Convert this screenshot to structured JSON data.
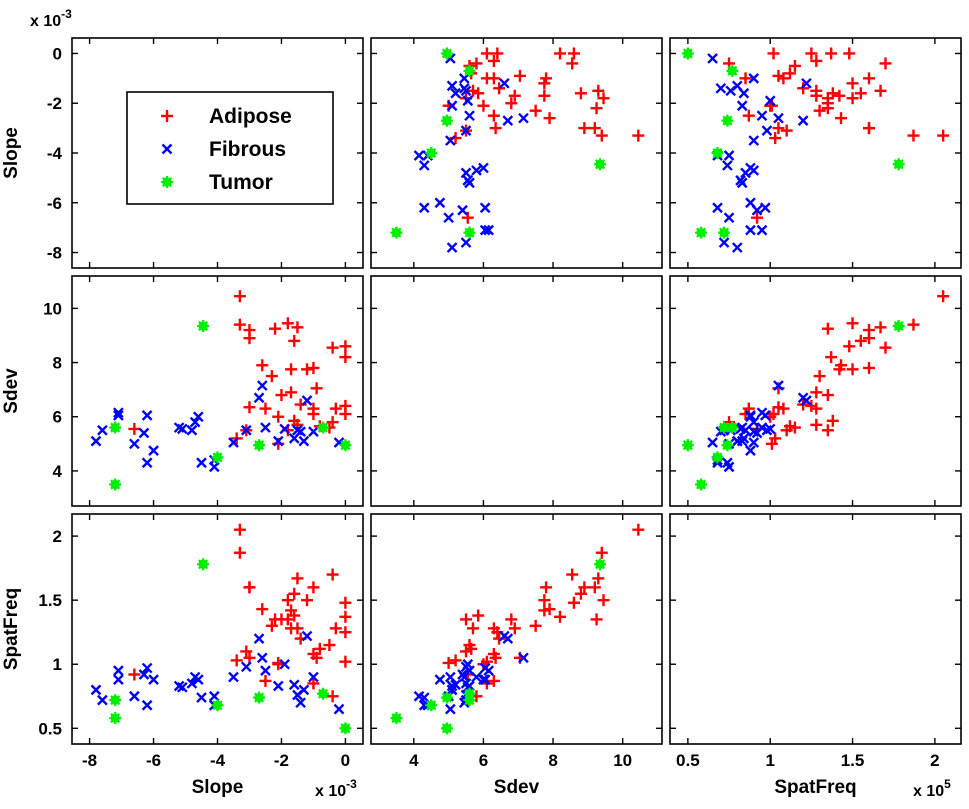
{
  "chart_data": {
    "type": "scatter",
    "variables": [
      "Slope",
      "Sdev",
      "SpatFreq"
    ],
    "legend": {
      "placement": "inside top-left panel",
      "entries": [
        {
          "name": "Adipose",
          "color": "#ff0000",
          "marker": "plus"
        },
        {
          "name": "Fibrous",
          "color": "#0000ff",
          "marker": "x"
        },
        {
          "name": "Tumor",
          "color": "#00ee00",
          "marker": "star"
        }
      ]
    },
    "axes": {
      "Slope": {
        "label": "Slope",
        "range": [
          -8.3,
          0.3
        ],
        "ticks": [
          -8,
          -6,
          -4,
          -2,
          0
        ],
        "exponent_label": "x 10",
        "exponent": "-3"
      },
      "Sdev": {
        "label": "Sdev",
        "range": [
          3.0,
          10.9
        ],
        "ticks": [
          4,
          6,
          8,
          10
        ],
        "exponent_label": "",
        "exponent": ""
      },
      "SpatFreq": {
        "label": "SpatFreq",
        "range": [
          0.44,
          2.11
        ],
        "ticks": [
          0.5,
          1,
          1.5,
          2
        ],
        "tick_labels": [
          "0.5",
          "1",
          "1.5",
          "2"
        ],
        "exponent_label": "x 10",
        "exponent": "5"
      }
    },
    "row_tick_labels": {
      "Slope": [
        "0",
        "-2",
        "-4",
        "-6",
        "-8"
      ],
      "Sdev": [
        "10",
        "8",
        "6",
        "4"
      ],
      "SpatFreq": [
        "2",
        "1.5",
        "1",
        "0.5"
      ]
    },
    "units_note": "Slope in units of 10^-3; SpatFreq in units of 10^5",
    "series": [
      {
        "name": "Adipose",
        "points": [
          [
            -3.3,
            10.45,
            2.05
          ],
          [
            -3.3,
            9.4,
            1.87
          ],
          [
            -3.0,
            9.2,
            1.6
          ],
          [
            -2.2,
            9.25,
            1.35
          ],
          [
            -1.8,
            9.45,
            1.5
          ],
          [
            -1.5,
            9.3,
            1.67
          ],
          [
            -1.6,
            8.8,
            1.55
          ],
          [
            -2.6,
            7.9,
            1.43
          ],
          [
            -2.3,
            7.5,
            1.3
          ],
          [
            -1.7,
            7.75,
            1.42
          ],
          [
            -1.2,
            7.75,
            1.5
          ],
          [
            -1.0,
            7.8,
            1.6
          ],
          [
            -0.4,
            8.55,
            1.7
          ],
          [
            0.0,
            8.6,
            1.48
          ],
          [
            0.0,
            8.2,
            1.37
          ],
          [
            -1.7,
            6.9,
            1.28
          ],
          [
            -1.4,
            6.45,
            1.2
          ],
          [
            -1.0,
            6.3,
            1.08
          ],
          [
            -0.8,
            5.65,
            1.12
          ],
          [
            -0.3,
            6.3,
            1.28
          ],
          [
            0.0,
            6.4,
            1.25
          ],
          [
            -2.1,
            6.0,
            1.0
          ],
          [
            -3.0,
            6.35,
            1.05
          ],
          [
            -3.1,
            5.5,
            1.1
          ],
          [
            -2.0,
            6.8,
            1.35
          ],
          [
            -1.6,
            5.85,
            1.38
          ],
          [
            -0.9,
            7.05,
            1.05
          ],
          [
            -6.6,
            5.55,
            0.92
          ],
          [
            -3.4,
            5.2,
            1.03
          ],
          [
            -2.1,
            5.0,
            1.01
          ],
          [
            -1.8,
            5.5,
            1.35
          ],
          [
            -1.5,
            5.7,
            1.28
          ],
          [
            -0.5,
            5.6,
            1.15
          ],
          [
            0.0,
            6.1,
            1.02
          ],
          [
            -3.0,
            8.9,
            1.6
          ],
          [
            -2.5,
            6.3,
            0.87
          ],
          [
            -0.4,
            5.8,
            0.75
          ],
          [
            -1.0,
            6.1,
            0.85
          ]
        ]
      },
      {
        "name": "Fibrous",
        "points": [
          [
            -7.8,
            5.1,
            0.8
          ],
          [
            -7.6,
            5.5,
            0.72
          ],
          [
            -7.1,
            6.15,
            0.95
          ],
          [
            -7.1,
            6.05,
            0.88
          ],
          [
            -6.2,
            6.05,
            0.97
          ],
          [
            -6.3,
            5.4,
            0.92
          ],
          [
            -6.0,
            4.75,
            0.88
          ],
          [
            -6.2,
            4.3,
            0.68
          ],
          [
            -5.1,
            5.55,
            0.82
          ],
          [
            -4.8,
            5.5,
            0.85
          ],
          [
            -4.6,
            6.0,
            0.88
          ],
          [
            -4.7,
            5.8,
            0.9
          ],
          [
            -4.5,
            4.3,
            0.74
          ],
          [
            -4.1,
            4.15,
            0.75
          ],
          [
            -4.1,
            4.4,
            0.68
          ],
          [
            -3.5,
            5.05,
            0.9
          ],
          [
            -3.1,
            5.5,
            0.98
          ],
          [
            -2.7,
            6.7,
            1.2
          ],
          [
            -2.6,
            7.15,
            1.05
          ],
          [
            -2.5,
            5.6,
            0.95
          ],
          [
            -2.1,
            5.1,
            0.83
          ],
          [
            -1.9,
            5.55,
            1.0
          ],
          [
            -1.6,
            5.2,
            0.84
          ],
          [
            -1.5,
            5.5,
            0.76
          ],
          [
            -1.4,
            5.45,
            0.7
          ],
          [
            -1.2,
            6.6,
            1.22
          ],
          [
            -1.3,
            5.1,
            0.8
          ],
          [
            -1.0,
            5.45,
            0.9
          ],
          [
            -0.2,
            5.05,
            0.65
          ],
          [
            -5.2,
            5.6,
            0.83
          ],
          [
            -6.6,
            5.0,
            0.75
          ]
        ]
      },
      {
        "name": "Tumor",
        "points": [
          [
            -7.2,
            5.6,
            0.72
          ],
          [
            -7.2,
            3.5,
            0.58
          ],
          [
            -4.0,
            4.5,
            0.68
          ],
          [
            -4.45,
            9.35,
            1.78
          ],
          [
            -2.7,
            4.95,
            0.74
          ],
          [
            -0.7,
            5.6,
            0.77
          ],
          [
            0.0,
            4.95,
            0.5
          ]
        ]
      }
    ]
  }
}
